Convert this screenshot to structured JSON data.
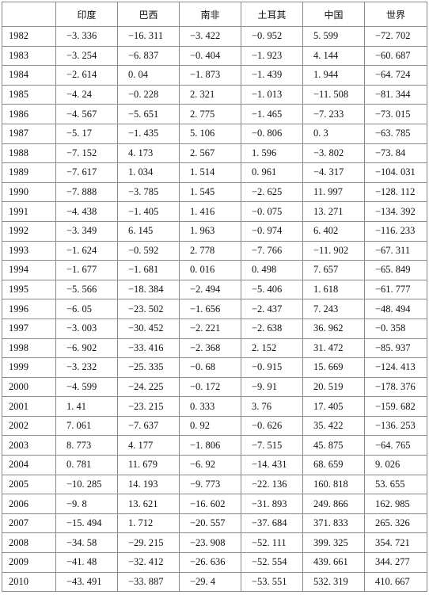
{
  "table": {
    "columns": [
      "印度",
      "巴西",
      "南非",
      "土耳其",
      "中国",
      "世界"
    ],
    "rows": [
      [
        "1982",
        "−3. 336",
        "−16. 311",
        "−3. 422",
        "−0. 952",
        "5. 599",
        "−72. 702"
      ],
      [
        "1983",
        "−3. 254",
        "−6. 837",
        "−0. 404",
        "−1. 923",
        "4. 144",
        "−60. 687"
      ],
      [
        "1984",
        "−2. 614",
        "0. 04",
        "−1. 873",
        "−1. 439",
        "1. 944",
        "−64. 724"
      ],
      [
        "1985",
        "−4. 24",
        "−0. 228",
        "2. 321",
        "−1. 013",
        "−11. 508",
        "−81. 344"
      ],
      [
        "1986",
        "−4. 567",
        "−5. 651",
        "2. 775",
        "−1. 465",
        "−7. 233",
        "−73. 015"
      ],
      [
        "1987",
        "−5. 17",
        "−1. 435",
        "5. 106",
        "−0. 806",
        "0. 3",
        "−63. 785"
      ],
      [
        "1988",
        "−7. 152",
        "4. 173",
        "2. 567",
        "1. 596",
        "−3. 802",
        "−73. 84"
      ],
      [
        "1989",
        "−7. 617",
        "1. 034",
        "1. 514",
        "0. 961",
        "−4. 317",
        "−104. 031"
      ],
      [
        "1990",
        "−7. 888",
        "−3. 785",
        "1. 545",
        "−2. 625",
        "11. 997",
        "−128. 112"
      ],
      [
        "1991",
        "−4. 438",
        "−1. 405",
        "1. 416",
        "−0. 075",
        "13. 271",
        "−134. 392"
      ],
      [
        "1992",
        "−3. 349",
        "6. 145",
        "1. 963",
        "−0. 974",
        "6. 402",
        "−116. 233"
      ],
      [
        "1993",
        "−1. 624",
        "−0. 592",
        "2. 778",
        "−7. 766",
        "−11. 902",
        "−67. 311"
      ],
      [
        "1994",
        "−1. 677",
        "−1. 681",
        "0. 016",
        "0. 498",
        "7. 657",
        "−65. 849"
      ],
      [
        "1995",
        "−5. 566",
        "−18. 384",
        "−2. 494",
        "−5. 406",
        "1. 618",
        "−61. 777"
      ],
      [
        "1996",
        "−6. 05",
        "−23. 502",
        "−1. 656",
        "−2. 437",
        "7. 243",
        "−48. 494"
      ],
      [
        "1997",
        "−3. 003",
        "−30. 452",
        "−2. 221",
        "−2. 638",
        "36. 962",
        "−0. 358"
      ],
      [
        "1998",
        "−6. 902",
        "−33. 416",
        "−2. 368",
        "2. 152",
        "31. 472",
        "−85. 937"
      ],
      [
        "1999",
        "−3. 232",
        "−25. 335",
        "−0. 68",
        "−0. 915",
        "15. 669",
        "−124. 413"
      ],
      [
        "2000",
        "−4. 599",
        "−24. 225",
        "−0. 172",
        "−9. 91",
        "20. 519",
        "−178. 376"
      ],
      [
        "2001",
        "1. 41",
        "−23. 215",
        "0. 333",
        "3. 76",
        "17. 405",
        "−159. 682"
      ],
      [
        "2002",
        "7. 061",
        "−7. 637",
        "0. 92",
        "−0. 626",
        "35. 422",
        "−136. 253"
      ],
      [
        "2003",
        "8. 773",
        "4. 177",
        "−1. 806",
        "−7. 515",
        "45. 875",
        "−64. 765"
      ],
      [
        "2004",
        "0. 781",
        "11. 679",
        "−6. 92",
        "−14. 431",
        "68. 659",
        "9. 026"
      ],
      [
        "2005",
        "−10. 285",
        "14. 193",
        "−9. 773",
        "−22. 136",
        "160. 818",
        "53. 655"
      ],
      [
        "2006",
        "−9. 8",
        "13. 621",
        "−16. 602",
        "−31. 893",
        "249. 866",
        "162. 985"
      ],
      [
        "2007",
        "−15. 494",
        "1. 712",
        "−20. 557",
        "−37. 684",
        "371. 833",
        "265. 326"
      ],
      [
        "2008",
        "−34. 58",
        "−29. 215",
        "−23. 908",
        "−52. 111",
        "399. 325",
        "354. 721"
      ],
      [
        "2009",
        "−41. 48",
        "−32. 412",
        "−26. 636",
        "−52. 554",
        "439. 661",
        "344. 277"
      ],
      [
        "2010",
        "−43. 491",
        "−33. 887",
        "−29. 4",
        "−53. 551",
        "532. 319",
        "410. 667"
      ]
    ]
  }
}
